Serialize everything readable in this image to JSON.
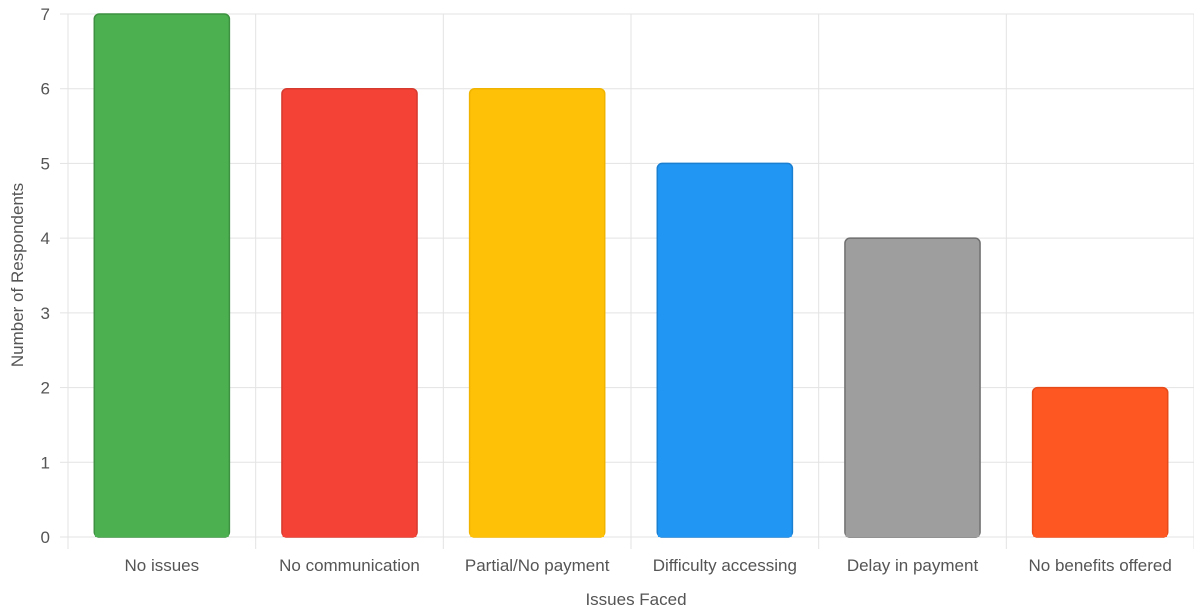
{
  "chart_data": {
    "type": "bar",
    "title": "",
    "xlabel": "Issues Faced",
    "ylabel": "Number of Respondents",
    "ylim": [
      0,
      7
    ],
    "yticks": [
      "0",
      "1",
      "2",
      "3",
      "4",
      "5",
      "6",
      "7"
    ],
    "categories": [
      "No issues",
      "No communication",
      "Partial/No payment",
      "Difficulty accessing",
      "Delay in payment",
      "No benefits offered"
    ],
    "values": [
      7,
      6,
      6,
      5,
      4,
      2
    ],
    "colors": [
      "#4caf50",
      "#f44336",
      "#ffc107",
      "#2196f3",
      "#9e9e9e",
      "#ff5722"
    ],
    "border_colors": [
      "#3d9140",
      "#d63a2f",
      "#f0b400",
      "#1b7fd1",
      "#6f6f6f",
      "#e64a19"
    ],
    "grid": true,
    "legend": "none"
  }
}
